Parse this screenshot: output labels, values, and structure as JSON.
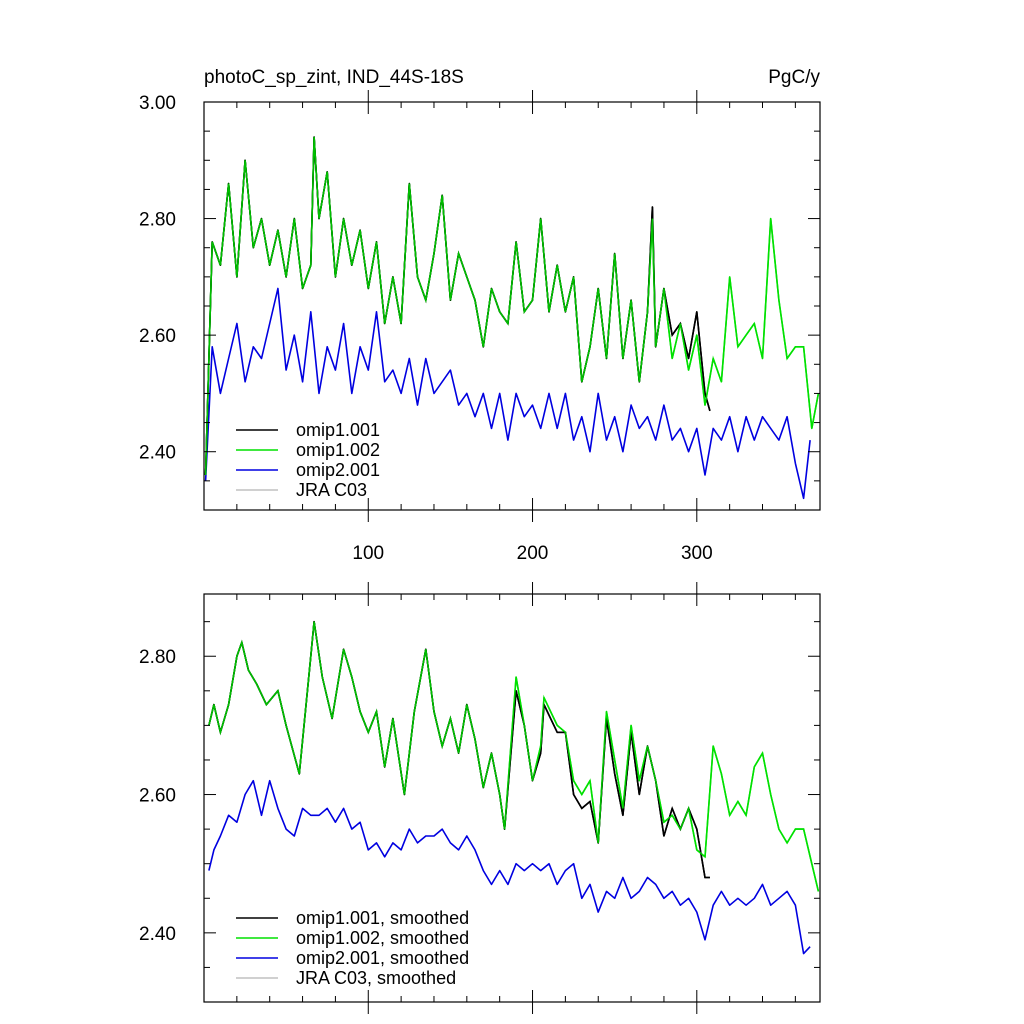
{
  "chart_data": [
    {
      "type": "line",
      "title": "photoC_sp_zint, IND_44S-18S",
      "units": "PgC/y",
      "xlabel": "",
      "ylabel": "",
      "xlim": [
        0,
        375
      ],
      "ylim": [
        2.3,
        3.0
      ],
      "xticks": [
        100,
        200,
        300
      ],
      "xtick_labels": [
        "100",
        "200",
        "300"
      ],
      "yticks": [
        2.4,
        2.6,
        2.8,
        3.0
      ],
      "ytick_labels": [
        "2.40",
        "2.60",
        "2.80",
        "3.00"
      ],
      "grid": false,
      "legend_position": "bottom-left",
      "legend": [
        "omip1.001",
        "omip1.002",
        "omip2.001",
        "JRA C03"
      ],
      "series": [
        {
          "name": "omip1.001",
          "color": "#000000",
          "x": [
            1,
            5,
            10,
            15,
            20,
            25,
            30,
            35,
            40,
            45,
            50,
            55,
            60,
            65,
            67,
            70,
            75,
            80,
            85,
            90,
            95,
            100,
            105,
            110,
            115,
            120,
            125,
            130,
            135,
            140,
            145,
            150,
            155,
            160,
            165,
            170,
            175,
            180,
            185,
            190,
            195,
            200,
            205,
            210,
            215,
            220,
            225,
            230,
            235,
            240,
            245,
            250,
            255,
            260,
            265,
            270,
            273,
            275,
            280,
            285,
            290,
            295,
            300,
            305,
            308
          ],
          "y": [
            2.36,
            2.76,
            2.72,
            2.86,
            2.7,
            2.9,
            2.75,
            2.8,
            2.72,
            2.78,
            2.7,
            2.8,
            2.68,
            2.72,
            2.94,
            2.8,
            2.88,
            2.7,
            2.8,
            2.72,
            2.78,
            2.68,
            2.76,
            2.62,
            2.7,
            2.62,
            2.86,
            2.7,
            2.66,
            2.74,
            2.84,
            2.66,
            2.74,
            2.7,
            2.66,
            2.58,
            2.68,
            2.64,
            2.62,
            2.76,
            2.64,
            2.66,
            2.8,
            2.64,
            2.72,
            2.64,
            2.7,
            2.52,
            2.58,
            2.68,
            2.56,
            2.74,
            2.56,
            2.66,
            2.52,
            2.64,
            2.82,
            2.58,
            2.68,
            2.6,
            2.62,
            2.56,
            2.64,
            2.5,
            2.47
          ]
        },
        {
          "name": "omip1.002",
          "color": "#00e000",
          "x": [
            1,
            5,
            10,
            15,
            20,
            25,
            30,
            35,
            40,
            45,
            50,
            55,
            60,
            65,
            67,
            70,
            75,
            80,
            85,
            90,
            95,
            100,
            105,
            110,
            115,
            120,
            125,
            130,
            135,
            140,
            145,
            150,
            155,
            160,
            165,
            170,
            175,
            180,
            185,
            190,
            195,
            200,
            205,
            210,
            215,
            220,
            225,
            230,
            235,
            240,
            245,
            250,
            255,
            260,
            265,
            270,
            273,
            275,
            280,
            285,
            290,
            295,
            300,
            305,
            310,
            315,
            320,
            325,
            330,
            335,
            340,
            345,
            350,
            355,
            360,
            365,
            370,
            374
          ],
          "y": [
            2.36,
            2.76,
            2.72,
            2.86,
            2.7,
            2.9,
            2.75,
            2.8,
            2.72,
            2.78,
            2.7,
            2.8,
            2.68,
            2.72,
            2.94,
            2.8,
            2.88,
            2.7,
            2.8,
            2.72,
            2.78,
            2.68,
            2.76,
            2.62,
            2.7,
            2.62,
            2.86,
            2.7,
            2.66,
            2.74,
            2.84,
            2.66,
            2.74,
            2.7,
            2.66,
            2.58,
            2.68,
            2.64,
            2.62,
            2.76,
            2.64,
            2.66,
            2.8,
            2.64,
            2.72,
            2.64,
            2.7,
            2.52,
            2.58,
            2.68,
            2.56,
            2.74,
            2.56,
            2.66,
            2.52,
            2.64,
            2.8,
            2.58,
            2.68,
            2.56,
            2.62,
            2.54,
            2.6,
            2.48,
            2.56,
            2.52,
            2.7,
            2.58,
            2.6,
            2.62,
            2.56,
            2.8,
            2.66,
            2.56,
            2.58,
            2.58,
            2.44,
            2.5
          ]
        },
        {
          "name": "omip2.001",
          "color": "#0000e0",
          "x": [
            1,
            5,
            10,
            15,
            20,
            25,
            30,
            35,
            40,
            45,
            50,
            55,
            60,
            65,
            70,
            75,
            80,
            85,
            90,
            95,
            100,
            105,
            110,
            115,
            120,
            125,
            130,
            135,
            140,
            145,
            150,
            155,
            160,
            165,
            170,
            175,
            180,
            185,
            190,
            195,
            200,
            205,
            210,
            215,
            220,
            225,
            230,
            235,
            240,
            245,
            250,
            255,
            260,
            265,
            270,
            275,
            280,
            285,
            290,
            295,
            300,
            305,
            310,
            315,
            320,
            325,
            330,
            335,
            340,
            345,
            350,
            355,
            360,
            365,
            369
          ],
          "y": [
            2.35,
            2.58,
            2.5,
            2.56,
            2.62,
            2.52,
            2.58,
            2.56,
            2.62,
            2.68,
            2.54,
            2.6,
            2.52,
            2.64,
            2.5,
            2.58,
            2.54,
            2.62,
            2.5,
            2.58,
            2.54,
            2.64,
            2.52,
            2.54,
            2.5,
            2.56,
            2.48,
            2.56,
            2.5,
            2.52,
            2.54,
            2.48,
            2.5,
            2.46,
            2.5,
            2.44,
            2.5,
            2.42,
            2.5,
            2.46,
            2.48,
            2.44,
            2.5,
            2.44,
            2.5,
            2.42,
            2.46,
            2.4,
            2.5,
            2.42,
            2.46,
            2.4,
            2.48,
            2.44,
            2.46,
            2.42,
            2.48,
            2.42,
            2.44,
            2.4,
            2.44,
            2.36,
            2.44,
            2.42,
            2.46,
            2.4,
            2.46,
            2.42,
            2.46,
            2.44,
            2.42,
            2.46,
            2.38,
            2.32,
            2.42
          ]
        },
        {
          "name": "JRA C03",
          "color": "#c0c0c0",
          "x": [],
          "y": []
        }
      ]
    },
    {
      "type": "line",
      "title": "",
      "xlabel": "",
      "ylabel": "",
      "xlim": [
        0,
        375
      ],
      "ylim": [
        2.3,
        2.89
      ],
      "xticks": [
        100,
        200,
        300
      ],
      "xtick_labels": [],
      "yticks": [
        2.4,
        2.6,
        2.8
      ],
      "ytick_labels": [
        "2.40",
        "2.60",
        "2.80"
      ],
      "grid": false,
      "legend_position": "bottom-left",
      "legend": [
        "omip1.001, smoothed",
        "omip1.002, smoothed",
        "omip2.001, smoothed",
        "JRA C03, smoothed"
      ],
      "series": [
        {
          "name": "omip1.001, smoothed",
          "color": "#000000",
          "x": [
            3,
            6,
            10,
            15,
            20,
            23,
            27,
            32,
            38,
            45,
            50,
            58,
            65,
            67,
            72,
            78,
            85,
            90,
            95,
            100,
            105,
            110,
            115,
            122,
            128,
            135,
            140,
            145,
            150,
            155,
            160,
            165,
            170,
            175,
            180,
            183,
            190,
            195,
            200,
            205,
            207,
            215,
            220,
            225,
            230,
            235,
            240,
            245,
            250,
            255,
            260,
            265,
            270,
            275,
            280,
            285,
            290,
            295,
            300,
            305,
            308
          ],
          "y": [
            2.7,
            2.73,
            2.69,
            2.73,
            2.8,
            2.82,
            2.78,
            2.76,
            2.73,
            2.75,
            2.7,
            2.63,
            2.8,
            2.85,
            2.77,
            2.71,
            2.81,
            2.77,
            2.72,
            2.69,
            2.72,
            2.64,
            2.71,
            2.6,
            2.72,
            2.81,
            2.72,
            2.67,
            2.71,
            2.66,
            2.73,
            2.68,
            2.61,
            2.66,
            2.6,
            2.55,
            2.75,
            2.7,
            2.62,
            2.66,
            2.73,
            2.69,
            2.69,
            2.6,
            2.58,
            2.59,
            2.53,
            2.71,
            2.63,
            2.57,
            2.69,
            2.6,
            2.67,
            2.62,
            2.54,
            2.58,
            2.55,
            2.58,
            2.55,
            2.48,
            2.48
          ]
        },
        {
          "name": "omip1.002, smoothed",
          "color": "#00e000",
          "x": [
            3,
            6,
            10,
            15,
            20,
            23,
            27,
            32,
            38,
            45,
            50,
            58,
            65,
            67,
            72,
            78,
            85,
            90,
            95,
            100,
            105,
            110,
            115,
            122,
            128,
            135,
            140,
            145,
            150,
            155,
            160,
            165,
            170,
            175,
            180,
            183,
            190,
            195,
            200,
            205,
            207,
            215,
            220,
            225,
            230,
            235,
            240,
            245,
            250,
            255,
            260,
            265,
            270,
            275,
            280,
            285,
            290,
            295,
            300,
            305,
            310,
            315,
            320,
            325,
            330,
            335,
            340,
            345,
            350,
            355,
            360,
            365,
            370,
            374
          ],
          "y": [
            2.7,
            2.73,
            2.69,
            2.73,
            2.8,
            2.82,
            2.78,
            2.76,
            2.73,
            2.75,
            2.7,
            2.63,
            2.8,
            2.85,
            2.77,
            2.71,
            2.81,
            2.77,
            2.72,
            2.69,
            2.72,
            2.64,
            2.71,
            2.6,
            2.72,
            2.81,
            2.72,
            2.67,
            2.71,
            2.66,
            2.73,
            2.68,
            2.61,
            2.66,
            2.6,
            2.55,
            2.77,
            2.7,
            2.62,
            2.67,
            2.74,
            2.7,
            2.69,
            2.62,
            2.6,
            2.62,
            2.53,
            2.72,
            2.65,
            2.58,
            2.7,
            2.62,
            2.67,
            2.62,
            2.56,
            2.57,
            2.55,
            2.58,
            2.52,
            2.51,
            2.67,
            2.63,
            2.57,
            2.59,
            2.57,
            2.64,
            2.66,
            2.6,
            2.55,
            2.53,
            2.55,
            2.55,
            2.5,
            2.46
          ]
        },
        {
          "name": "omip2.001, smoothed",
          "color": "#0000e0",
          "x": [
            3,
            6,
            10,
            15,
            20,
            25,
            30,
            35,
            40,
            45,
            50,
            55,
            60,
            65,
            70,
            75,
            80,
            85,
            90,
            95,
            100,
            105,
            110,
            115,
            120,
            125,
            130,
            135,
            140,
            145,
            150,
            155,
            160,
            165,
            170,
            175,
            180,
            185,
            190,
            195,
            200,
            205,
            210,
            215,
            220,
            225,
            230,
            235,
            240,
            245,
            250,
            255,
            260,
            265,
            270,
            275,
            280,
            285,
            290,
            295,
            300,
            305,
            310,
            315,
            320,
            325,
            330,
            335,
            340,
            345,
            350,
            355,
            360,
            365,
            369
          ],
          "y": [
            2.49,
            2.52,
            2.54,
            2.57,
            2.56,
            2.6,
            2.62,
            2.57,
            2.62,
            2.58,
            2.55,
            2.54,
            2.58,
            2.57,
            2.57,
            2.58,
            2.56,
            2.58,
            2.55,
            2.56,
            2.52,
            2.53,
            2.51,
            2.53,
            2.52,
            2.55,
            2.53,
            2.54,
            2.54,
            2.55,
            2.53,
            2.52,
            2.54,
            2.52,
            2.49,
            2.47,
            2.49,
            2.47,
            2.5,
            2.49,
            2.5,
            2.49,
            2.5,
            2.47,
            2.49,
            2.5,
            2.45,
            2.47,
            2.43,
            2.46,
            2.45,
            2.48,
            2.45,
            2.46,
            2.48,
            2.47,
            2.45,
            2.46,
            2.44,
            2.45,
            2.43,
            2.39,
            2.44,
            2.46,
            2.44,
            2.45,
            2.44,
            2.45,
            2.47,
            2.44,
            2.45,
            2.46,
            2.44,
            2.37,
            2.38
          ]
        },
        {
          "name": "JRA C03, smoothed",
          "color": "#c0c0c0",
          "x": [],
          "y": []
        }
      ]
    }
  ]
}
